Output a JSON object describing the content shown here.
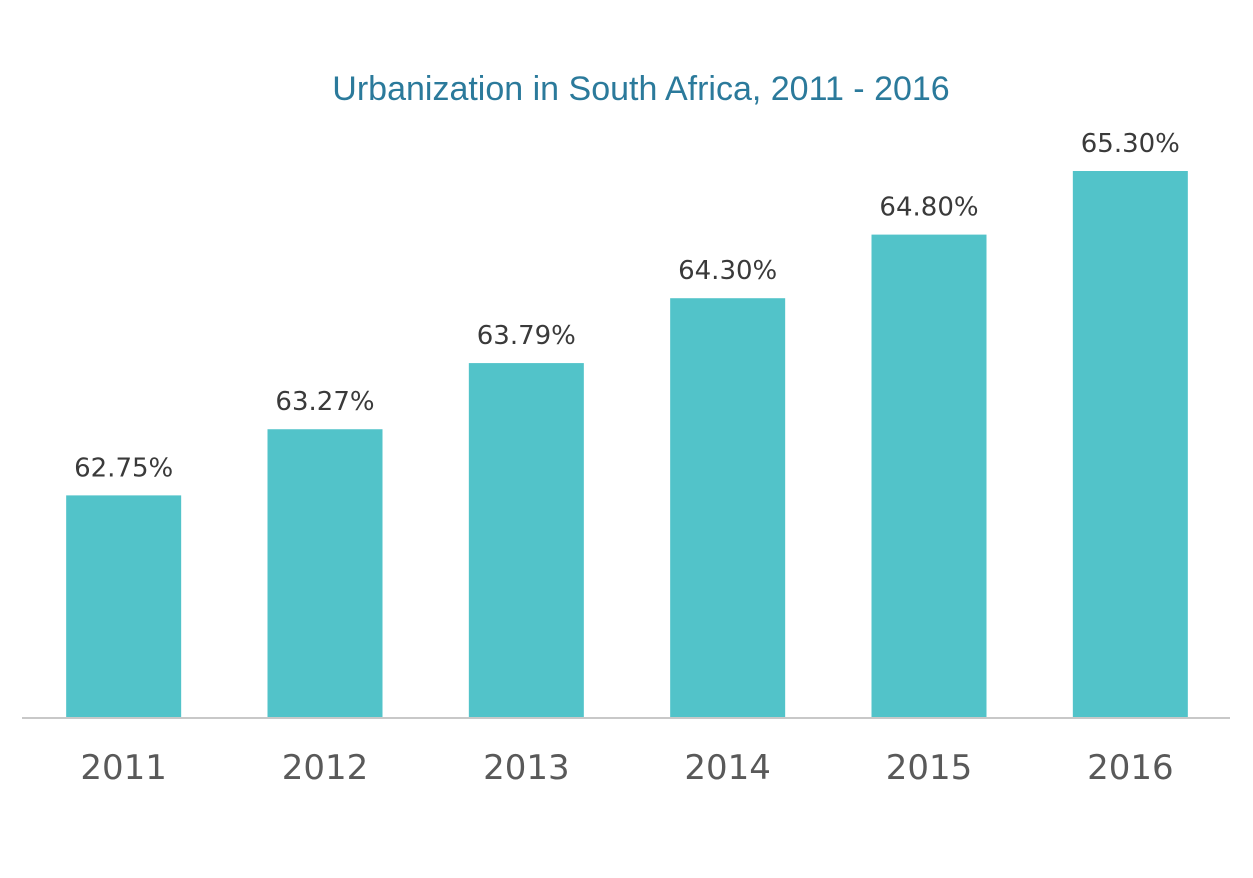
{
  "chart_data": {
    "type": "bar",
    "title": "Urbanization in South Africa, 2011 - 2016",
    "xlabel": "",
    "ylabel": "",
    "categories": [
      "2011",
      "2012",
      "2013",
      "2014",
      "2015",
      "2016"
    ],
    "values": [
      62.75,
      63.27,
      63.79,
      64.3,
      64.8,
      65.3
    ],
    "data_labels": [
      "62.75%",
      "63.27%",
      "63.79%",
      "64.30%",
      "64.80%",
      "65.30%"
    ],
    "ylim": [
      61.0,
      65.3
    ],
    "grid": false,
    "legend": "none",
    "colors": {
      "bar": "#52c3c9",
      "title": "#2b7a9b",
      "axis": "#c8c8c8"
    }
  }
}
